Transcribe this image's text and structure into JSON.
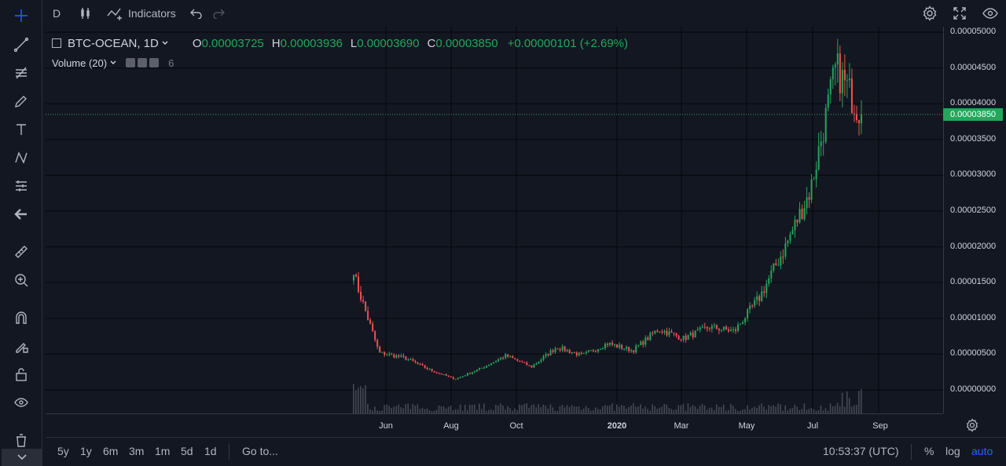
{
  "top": {
    "interval": "D",
    "indicators_label": "Indicators"
  },
  "legend": {
    "symbol": "BTC-OCEAN, 1D",
    "o_key": "O",
    "o_val": "0.00003725",
    "h_key": "H",
    "h_val": "0.00003936",
    "l_key": "L",
    "l_val": "0.00003690",
    "c_key": "C",
    "c_val": "0.00003850",
    "change": "+0.00000101 (+2.69%)",
    "volume_label": "Volume (20)",
    "volume_value": "6"
  },
  "price_axis": {
    "ticks": [
      "0.00005000",
      "0.00004500",
      "0.00004000",
      "0.00003500",
      "0.00003000",
      "0.00002500",
      "0.00002000",
      "0.00001500",
      "0.00001000",
      "0.00000500",
      "0.00000000"
    ],
    "last_price": "0.00003850"
  },
  "time_axis": {
    "ticks": [
      "Jun",
      "Aug",
      "Oct",
      "2020",
      "Mar",
      "May",
      "Jul",
      "Sep"
    ]
  },
  "bottom": {
    "ranges": [
      "5y",
      "1y",
      "6m",
      "3m",
      "1m",
      "5d",
      "1d"
    ],
    "goto": "Go to...",
    "clock": "10:53:37 (UTC)",
    "percent": "%",
    "log": "log",
    "auto": "auto"
  },
  "colors": {
    "up": "#26a65b",
    "down": "#ef5350",
    "accent": "#2962ff",
    "background": "#131722"
  },
  "chart_data": {
    "type": "candlestick",
    "symbol": "BTC-OCEAN",
    "interval": "1D",
    "ylim": [
      0,
      5e-05
    ],
    "x_ticks": [
      "Jun",
      "Aug",
      "Oct",
      "2020",
      "Mar",
      "May",
      "Jul",
      "Sep"
    ],
    "series_close": [
      {
        "x": "May",
        "y": 1.61e-05
      },
      {
        "x": "May",
        "y": 5.2e-06
      },
      {
        "x": "Jun",
        "y": 4.5e-06
      },
      {
        "x": "Jul",
        "y": 2.8e-06
      },
      {
        "x": "Aug",
        "y": 1.5e-06
      },
      {
        "x": "Sep",
        "y": 3e-06
      },
      {
        "x": "Oct",
        "y": 4.8e-06
      },
      {
        "x": "Nov",
        "y": 3.2e-06
      },
      {
        "x": "Dec",
        "y": 6e-06
      },
      {
        "x": "Jan",
        "y": 4.8e-06
      },
      {
        "x": "Feb",
        "y": 6.5e-06
      },
      {
        "x": "Mar",
        "y": 5.5e-06
      },
      {
        "x": "Apr",
        "y": 8.5e-06
      },
      {
        "x": "May",
        "y": 7.2e-06
      },
      {
        "x": "Jun",
        "y": 8.8e-06
      },
      {
        "x": "Jul",
        "y": 8.2e-06
      },
      {
        "x": "Jul",
        "y": 1.3e-05
      },
      {
        "x": "Aug",
        "y": 2e-05
      },
      {
        "x": "Aug",
        "y": 2.8e-05
      },
      {
        "x": "Aug",
        "y": 4.5e-05
      },
      {
        "x": "Aug",
        "y": 3.85e-05
      }
    ],
    "last_close": 3.85e-05
  }
}
